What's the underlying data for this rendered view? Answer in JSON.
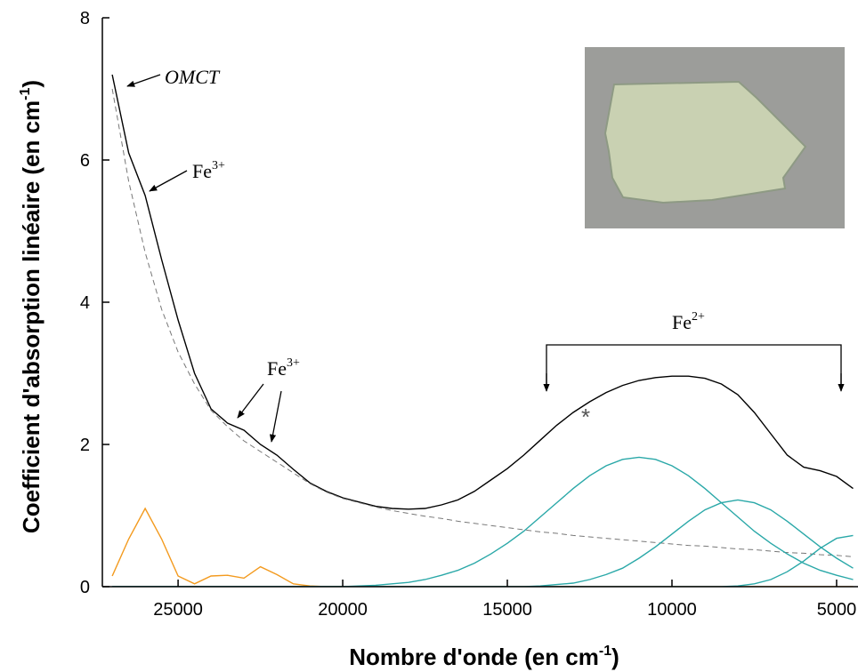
{
  "chart_data": {
    "type": "line",
    "xlabel": {
      "text": "Nombre d'onde (en cm",
      "sup": "-1",
      "tail": ")"
    },
    "ylabel": {
      "text": "Coefficient d'absorption linéaire (en cm",
      "sup": "-1",
      "tail": ")"
    },
    "xlim": [
      27300,
      4350
    ],
    "ylim": [
      0,
      8
    ],
    "xticks": [
      25000,
      20000,
      15000,
      10000,
      5000
    ],
    "yticks": [
      0,
      2,
      4,
      6,
      8
    ],
    "x": [
      27000,
      26500,
      26000,
      25500,
      25000,
      24500,
      24000,
      23500,
      23000,
      22500,
      22000,
      21500,
      21000,
      20500,
      20000,
      19500,
      19000,
      18500,
      18000,
      17500,
      17000,
      16500,
      16000,
      15500,
      15000,
      14500,
      14000,
      13500,
      13000,
      12500,
      12000,
      11500,
      11000,
      10500,
      10000,
      9500,
      9000,
      8500,
      8000,
      7500,
      7000,
      6500,
      6000,
      5500,
      5000,
      4500
    ],
    "series": [
      {
        "color": "#000000",
        "values": [
          7.2,
          6.1,
          5.5,
          4.6,
          3.75,
          3.0,
          2.5,
          2.3,
          2.2,
          2.0,
          1.85,
          1.65,
          1.46,
          1.34,
          1.25,
          1.19,
          1.13,
          1.1,
          1.09,
          1.1,
          1.15,
          1.22,
          1.34,
          1.5,
          1.66,
          1.85,
          2.06,
          2.27,
          2.45,
          2.6,
          2.73,
          2.83,
          2.9,
          2.94,
          2.96,
          2.96,
          2.93,
          2.85,
          2.7,
          2.45,
          2.15,
          1.85,
          1.68,
          1.63,
          1.55,
          1.38
        ]
      },
      {
        "color": "#777777",
        "dash": true,
        "values": [
          7.0,
          5.7,
          4.7,
          3.9,
          3.3,
          2.85,
          2.48,
          2.25,
          2.05,
          1.9,
          1.75,
          1.6,
          1.45,
          1.33,
          1.24,
          1.18,
          1.12,
          1.07,
          1.03,
          0.99,
          0.96,
          0.92,
          0.89,
          0.86,
          0.83,
          0.8,
          0.77,
          0.75,
          0.72,
          0.7,
          0.68,
          0.66,
          0.64,
          0.62,
          0.6,
          0.58,
          0.57,
          0.55,
          0.53,
          0.52,
          0.5,
          0.48,
          0.47,
          0.45,
          0.44,
          0.42
        ]
      },
      {
        "color": "#f39a1e",
        "values": [
          0.15,
          0.67,
          1.1,
          0.67,
          0.15,
          0.04,
          0.15,
          0.16,
          0.12,
          0.28,
          0.17,
          0.04,
          0.01,
          0,
          0,
          0,
          0,
          0,
          0,
          0,
          0,
          0,
          0,
          0,
          0,
          0,
          0,
          0,
          0,
          0,
          0,
          0,
          0,
          0,
          0,
          0,
          0,
          0,
          0,
          0,
          0,
          0,
          0,
          0,
          0,
          0
        ]
      },
      {
        "color": "#2aa8a8",
        "values": [
          0,
          0,
          0,
          0,
          0,
          0,
          0,
          0,
          0,
          0,
          0,
          0,
          0,
          0,
          0,
          0.01,
          0.02,
          0.04,
          0.06,
          0.1,
          0.16,
          0.23,
          0.33,
          0.46,
          0.61,
          0.78,
          0.98,
          1.18,
          1.38,
          1.56,
          1.7,
          1.79,
          1.82,
          1.79,
          1.7,
          1.56,
          1.38,
          1.18,
          0.98,
          0.78,
          0.61,
          0.46,
          0.33,
          0.23,
          0.16,
          0.1
        ]
      },
      {
        "color": "#2aa8a8",
        "values": [
          0,
          0,
          0,
          0,
          0,
          0,
          0,
          0,
          0,
          0,
          0,
          0,
          0,
          0,
          0,
          0,
          0,
          0,
          0,
          0,
          0,
          0,
          0,
          0,
          0,
          0,
          0.01,
          0.03,
          0.05,
          0.1,
          0.17,
          0.26,
          0.4,
          0.56,
          0.74,
          0.92,
          1.08,
          1.18,
          1.22,
          1.18,
          1.08,
          0.92,
          0.74,
          0.56,
          0.4,
          0.26
        ]
      },
      {
        "color": "#2aa8a8",
        "values": [
          0,
          0,
          0,
          0,
          0,
          0,
          0,
          0,
          0,
          0,
          0,
          0,
          0,
          0,
          0,
          0,
          0,
          0,
          0,
          0,
          0,
          0,
          0,
          0,
          0,
          0,
          0,
          0,
          0,
          0,
          0,
          0,
          0,
          0,
          0,
          0,
          0,
          0,
          0.01,
          0.04,
          0.1,
          0.21,
          0.36,
          0.54,
          0.68,
          0.72
        ]
      }
    ],
    "annotations": [
      {
        "text": "OMCT"
      },
      {
        "text": "Fe",
        "sup": "3+"
      },
      {
        "text": "Fe",
        "sup": "3+"
      },
      {
        "text": "Fe",
        "sup": "2+"
      },
      {
        "text": "*"
      }
    ]
  }
}
